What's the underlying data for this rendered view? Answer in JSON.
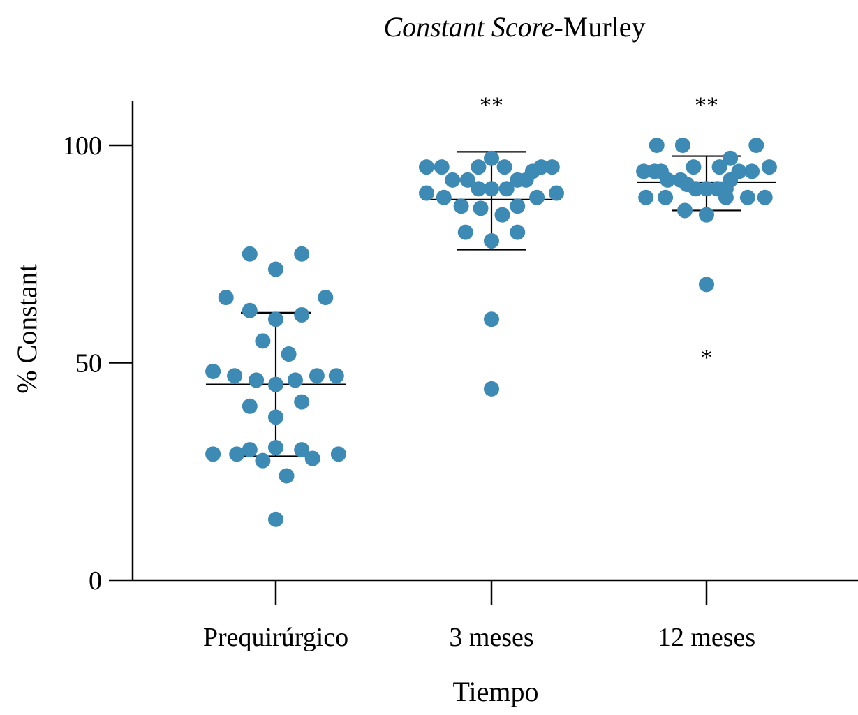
{
  "chart_data": {
    "type": "scatter",
    "title_italic": "Constant Score",
    "title_rest": "-Murley",
    "xlabel": "Tiempo",
    "ylabel": "% Constant",
    "ylim": [
      0,
      110
    ],
    "yticks": [
      0,
      50,
      100
    ],
    "marker_color": "#3d8ab5",
    "categories": [
      "Prequirúrgico",
      "3 meses",
      "12 meses"
    ],
    "groups": [
      {
        "name": "Prequirúrgico",
        "mean": 45,
        "sd_upper": 61.5,
        "sd_lower": 28.5,
        "significance": [],
        "points": [
          {
            "offset": -0.12,
            "y": 75
          },
          {
            "offset": 0.12,
            "y": 75
          },
          {
            "offset": 0.0,
            "y": 71.5
          },
          {
            "offset": -0.23,
            "y": 65
          },
          {
            "offset": 0.23,
            "y": 65
          },
          {
            "offset": -0.12,
            "y": 62
          },
          {
            "offset": 0.0,
            "y": 60
          },
          {
            "offset": 0.12,
            "y": 61
          },
          {
            "offset": -0.06,
            "y": 55
          },
          {
            "offset": 0.06,
            "y": 52
          },
          {
            "offset": -0.29,
            "y": 48
          },
          {
            "offset": -0.19,
            "y": 47
          },
          {
            "offset": -0.09,
            "y": 46
          },
          {
            "offset": 0.0,
            "y": 45
          },
          {
            "offset": 0.09,
            "y": 46
          },
          {
            "offset": 0.19,
            "y": 47
          },
          {
            "offset": 0.28,
            "y": 47
          },
          {
            "offset": -0.12,
            "y": 40
          },
          {
            "offset": 0.12,
            "y": 41
          },
          {
            "offset": 0.0,
            "y": 37.5
          },
          {
            "offset": -0.12,
            "y": 30
          },
          {
            "offset": 0.0,
            "y": 30.5
          },
          {
            "offset": 0.12,
            "y": 30
          },
          {
            "offset": -0.29,
            "y": 29
          },
          {
            "offset": -0.18,
            "y": 29
          },
          {
            "offset": 0.17,
            "y": 28
          },
          {
            "offset": 0.29,
            "y": 29
          },
          {
            "offset": -0.06,
            "y": 27.5
          },
          {
            "offset": 0.05,
            "y": 24
          },
          {
            "offset": 0.0,
            "y": 14
          }
        ]
      },
      {
        "name": "3 meses",
        "mean": 87.5,
        "sd_upper": 98.5,
        "sd_lower": 76,
        "significance": [
          {
            "label": "**",
            "y": 111
          }
        ],
        "points": [
          {
            "offset": 0.0,
            "y": 97
          },
          {
            "offset": -0.3,
            "y": 95
          },
          {
            "offset": -0.23,
            "y": 95
          },
          {
            "offset": -0.06,
            "y": 95
          },
          {
            "offset": 0.06,
            "y": 95
          },
          {
            "offset": 0.23,
            "y": 95
          },
          {
            "offset": 0.28,
            "y": 95
          },
          {
            "offset": 0.19,
            "y": 94
          },
          {
            "offset": -0.18,
            "y": 92
          },
          {
            "offset": -0.11,
            "y": 92
          },
          {
            "offset": 0.12,
            "y": 92
          },
          {
            "offset": 0.16,
            "y": 92
          },
          {
            "offset": -0.06,
            "y": 90
          },
          {
            "offset": 0.0,
            "y": 90
          },
          {
            "offset": 0.07,
            "y": 90
          },
          {
            "offset": -0.3,
            "y": 89
          },
          {
            "offset": 0.3,
            "y": 89
          },
          {
            "offset": -0.22,
            "y": 88
          },
          {
            "offset": 0.21,
            "y": 88
          },
          {
            "offset": -0.14,
            "y": 86
          },
          {
            "offset": -0.05,
            "y": 85.5
          },
          {
            "offset": 0.12,
            "y": 86
          },
          {
            "offset": 0.05,
            "y": 84
          },
          {
            "offset": -0.12,
            "y": 80
          },
          {
            "offset": 0.12,
            "y": 80
          },
          {
            "offset": 0.0,
            "y": 78
          },
          {
            "offset": 0.0,
            "y": 60
          },
          {
            "offset": 0.0,
            "y": 44
          }
        ]
      },
      {
        "name": "12 meses",
        "mean": 91.5,
        "sd_upper": 97.5,
        "sd_lower": 85,
        "significance": [
          {
            "label": "**",
            "y": 111
          },
          {
            "label": "*",
            "y": 53
          }
        ],
        "points": [
          {
            "offset": -0.23,
            "y": 100
          },
          {
            "offset": -0.11,
            "y": 100
          },
          {
            "offset": 0.23,
            "y": 100
          },
          {
            "offset": 0.11,
            "y": 97
          },
          {
            "offset": -0.06,
            "y": 95
          },
          {
            "offset": 0.06,
            "y": 95
          },
          {
            "offset": 0.29,
            "y": 95
          },
          {
            "offset": -0.29,
            "y": 94
          },
          {
            "offset": -0.24,
            "y": 94
          },
          {
            "offset": -0.21,
            "y": 94
          },
          {
            "offset": 0.15,
            "y": 94
          },
          {
            "offset": 0.21,
            "y": 94
          },
          {
            "offset": -0.18,
            "y": 92
          },
          {
            "offset": -0.12,
            "y": 92
          },
          {
            "offset": 0.11,
            "y": 92
          },
          {
            "offset": -0.09,
            "y": 91
          },
          {
            "offset": -0.05,
            "y": 90
          },
          {
            "offset": 0.0,
            "y": 90
          },
          {
            "offset": 0.05,
            "y": 90
          },
          {
            "offset": 0.09,
            "y": 90
          },
          {
            "offset": -0.28,
            "y": 88
          },
          {
            "offset": -0.19,
            "y": 88
          },
          {
            "offset": 0.09,
            "y": 88
          },
          {
            "offset": 0.19,
            "y": 88
          },
          {
            "offset": 0.27,
            "y": 88
          },
          {
            "offset": -0.1,
            "y": 85
          },
          {
            "offset": 0.0,
            "y": 84
          },
          {
            "offset": 0.0,
            "y": 68
          }
        ]
      }
    ]
  }
}
